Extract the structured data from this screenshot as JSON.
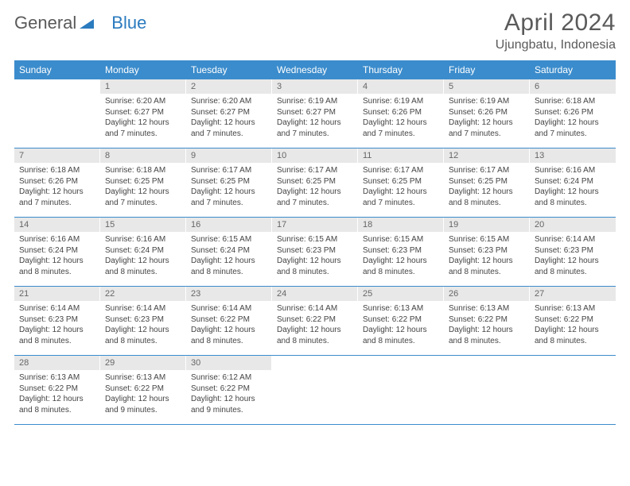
{
  "logo": {
    "part1": "General",
    "part2": "Blue"
  },
  "title": "April 2024",
  "location": "Ujungbatu, Indonesia",
  "colors": {
    "header_bg": "#3b8ccc",
    "header_text": "#ffffff",
    "daynum_bg": "#e8e8e8",
    "daynum_text": "#666666",
    "body_text": "#444444",
    "divider": "#3b8ccc"
  },
  "day_names": [
    "Sunday",
    "Monday",
    "Tuesday",
    "Wednesday",
    "Thursday",
    "Friday",
    "Saturday"
  ],
  "weeks": [
    [
      null,
      {
        "n": "1",
        "sr": "Sunrise: 6:20 AM",
        "ss": "Sunset: 6:27 PM",
        "d1": "Daylight: 12 hours",
        "d2": "and 7 minutes."
      },
      {
        "n": "2",
        "sr": "Sunrise: 6:20 AM",
        "ss": "Sunset: 6:27 PM",
        "d1": "Daylight: 12 hours",
        "d2": "and 7 minutes."
      },
      {
        "n": "3",
        "sr": "Sunrise: 6:19 AM",
        "ss": "Sunset: 6:27 PM",
        "d1": "Daylight: 12 hours",
        "d2": "and 7 minutes."
      },
      {
        "n": "4",
        "sr": "Sunrise: 6:19 AM",
        "ss": "Sunset: 6:26 PM",
        "d1": "Daylight: 12 hours",
        "d2": "and 7 minutes."
      },
      {
        "n": "5",
        "sr": "Sunrise: 6:19 AM",
        "ss": "Sunset: 6:26 PM",
        "d1": "Daylight: 12 hours",
        "d2": "and 7 minutes."
      },
      {
        "n": "6",
        "sr": "Sunrise: 6:18 AM",
        "ss": "Sunset: 6:26 PM",
        "d1": "Daylight: 12 hours",
        "d2": "and 7 minutes."
      }
    ],
    [
      {
        "n": "7",
        "sr": "Sunrise: 6:18 AM",
        "ss": "Sunset: 6:26 PM",
        "d1": "Daylight: 12 hours",
        "d2": "and 7 minutes."
      },
      {
        "n": "8",
        "sr": "Sunrise: 6:18 AM",
        "ss": "Sunset: 6:25 PM",
        "d1": "Daylight: 12 hours",
        "d2": "and 7 minutes."
      },
      {
        "n": "9",
        "sr": "Sunrise: 6:17 AM",
        "ss": "Sunset: 6:25 PM",
        "d1": "Daylight: 12 hours",
        "d2": "and 7 minutes."
      },
      {
        "n": "10",
        "sr": "Sunrise: 6:17 AM",
        "ss": "Sunset: 6:25 PM",
        "d1": "Daylight: 12 hours",
        "d2": "and 7 minutes."
      },
      {
        "n": "11",
        "sr": "Sunrise: 6:17 AM",
        "ss": "Sunset: 6:25 PM",
        "d1": "Daylight: 12 hours",
        "d2": "and 7 minutes."
      },
      {
        "n": "12",
        "sr": "Sunrise: 6:17 AM",
        "ss": "Sunset: 6:25 PM",
        "d1": "Daylight: 12 hours",
        "d2": "and 8 minutes."
      },
      {
        "n": "13",
        "sr": "Sunrise: 6:16 AM",
        "ss": "Sunset: 6:24 PM",
        "d1": "Daylight: 12 hours",
        "d2": "and 8 minutes."
      }
    ],
    [
      {
        "n": "14",
        "sr": "Sunrise: 6:16 AM",
        "ss": "Sunset: 6:24 PM",
        "d1": "Daylight: 12 hours",
        "d2": "and 8 minutes."
      },
      {
        "n": "15",
        "sr": "Sunrise: 6:16 AM",
        "ss": "Sunset: 6:24 PM",
        "d1": "Daylight: 12 hours",
        "d2": "and 8 minutes."
      },
      {
        "n": "16",
        "sr": "Sunrise: 6:15 AM",
        "ss": "Sunset: 6:24 PM",
        "d1": "Daylight: 12 hours",
        "d2": "and 8 minutes."
      },
      {
        "n": "17",
        "sr": "Sunrise: 6:15 AM",
        "ss": "Sunset: 6:23 PM",
        "d1": "Daylight: 12 hours",
        "d2": "and 8 minutes."
      },
      {
        "n": "18",
        "sr": "Sunrise: 6:15 AM",
        "ss": "Sunset: 6:23 PM",
        "d1": "Daylight: 12 hours",
        "d2": "and 8 minutes."
      },
      {
        "n": "19",
        "sr": "Sunrise: 6:15 AM",
        "ss": "Sunset: 6:23 PM",
        "d1": "Daylight: 12 hours",
        "d2": "and 8 minutes."
      },
      {
        "n": "20",
        "sr": "Sunrise: 6:14 AM",
        "ss": "Sunset: 6:23 PM",
        "d1": "Daylight: 12 hours",
        "d2": "and 8 minutes."
      }
    ],
    [
      {
        "n": "21",
        "sr": "Sunrise: 6:14 AM",
        "ss": "Sunset: 6:23 PM",
        "d1": "Daylight: 12 hours",
        "d2": "and 8 minutes."
      },
      {
        "n": "22",
        "sr": "Sunrise: 6:14 AM",
        "ss": "Sunset: 6:23 PM",
        "d1": "Daylight: 12 hours",
        "d2": "and 8 minutes."
      },
      {
        "n": "23",
        "sr": "Sunrise: 6:14 AM",
        "ss": "Sunset: 6:22 PM",
        "d1": "Daylight: 12 hours",
        "d2": "and 8 minutes."
      },
      {
        "n": "24",
        "sr": "Sunrise: 6:14 AM",
        "ss": "Sunset: 6:22 PM",
        "d1": "Daylight: 12 hours",
        "d2": "and 8 minutes."
      },
      {
        "n": "25",
        "sr": "Sunrise: 6:13 AM",
        "ss": "Sunset: 6:22 PM",
        "d1": "Daylight: 12 hours",
        "d2": "and 8 minutes."
      },
      {
        "n": "26",
        "sr": "Sunrise: 6:13 AM",
        "ss": "Sunset: 6:22 PM",
        "d1": "Daylight: 12 hours",
        "d2": "and 8 minutes."
      },
      {
        "n": "27",
        "sr": "Sunrise: 6:13 AM",
        "ss": "Sunset: 6:22 PM",
        "d1": "Daylight: 12 hours",
        "d2": "and 8 minutes."
      }
    ],
    [
      {
        "n": "28",
        "sr": "Sunrise: 6:13 AM",
        "ss": "Sunset: 6:22 PM",
        "d1": "Daylight: 12 hours",
        "d2": "and 8 minutes."
      },
      {
        "n": "29",
        "sr": "Sunrise: 6:13 AM",
        "ss": "Sunset: 6:22 PM",
        "d1": "Daylight: 12 hours",
        "d2": "and 9 minutes."
      },
      {
        "n": "30",
        "sr": "Sunrise: 6:12 AM",
        "ss": "Sunset: 6:22 PM",
        "d1": "Daylight: 12 hours",
        "d2": "and 9 minutes."
      },
      null,
      null,
      null,
      null
    ]
  ]
}
